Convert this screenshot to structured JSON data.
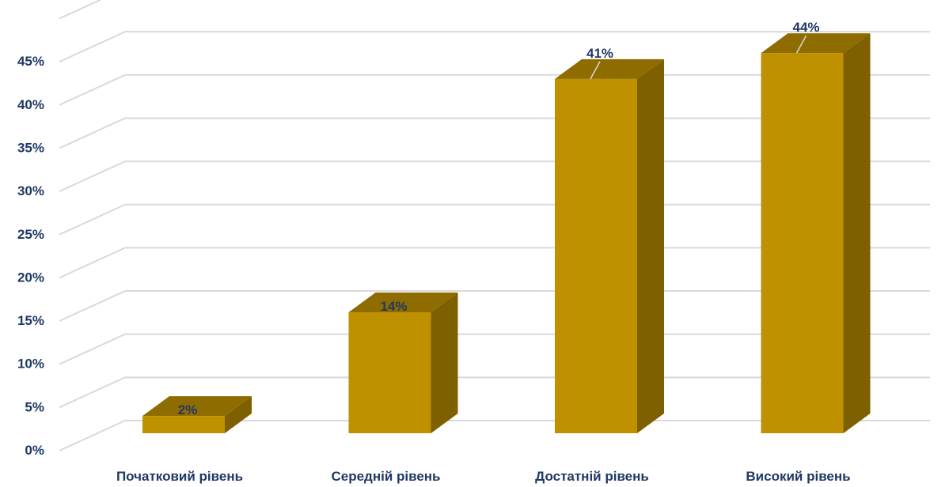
{
  "chart_data": {
    "type": "bar",
    "categories": [
      "Початковий рівень",
      "Середній рівень",
      "Достатній рівень",
      "Високий рівень"
    ],
    "values": [
      2,
      14,
      41,
      44
    ],
    "data_labels": [
      "2%",
      "14%",
      "41%",
      "44%"
    ],
    "y_ticks": [
      0,
      5,
      10,
      15,
      20,
      25,
      30,
      35,
      40,
      45
    ],
    "y_tick_labels": [
      "0%",
      "5%",
      "10%",
      "15%",
      "20%",
      "25%",
      "30%",
      "35%",
      "40%",
      "45%"
    ],
    "ylim": [
      0,
      50
    ],
    "grid": true,
    "three_d": true,
    "title": "",
    "xlabel": "",
    "ylabel": "",
    "colors": {
      "bar_front": "#bf9000",
      "bar_side": "#7f6000",
      "bar_top": "#8f6c00",
      "gridline": "#d9d9d9",
      "text": "#1f3864"
    }
  }
}
